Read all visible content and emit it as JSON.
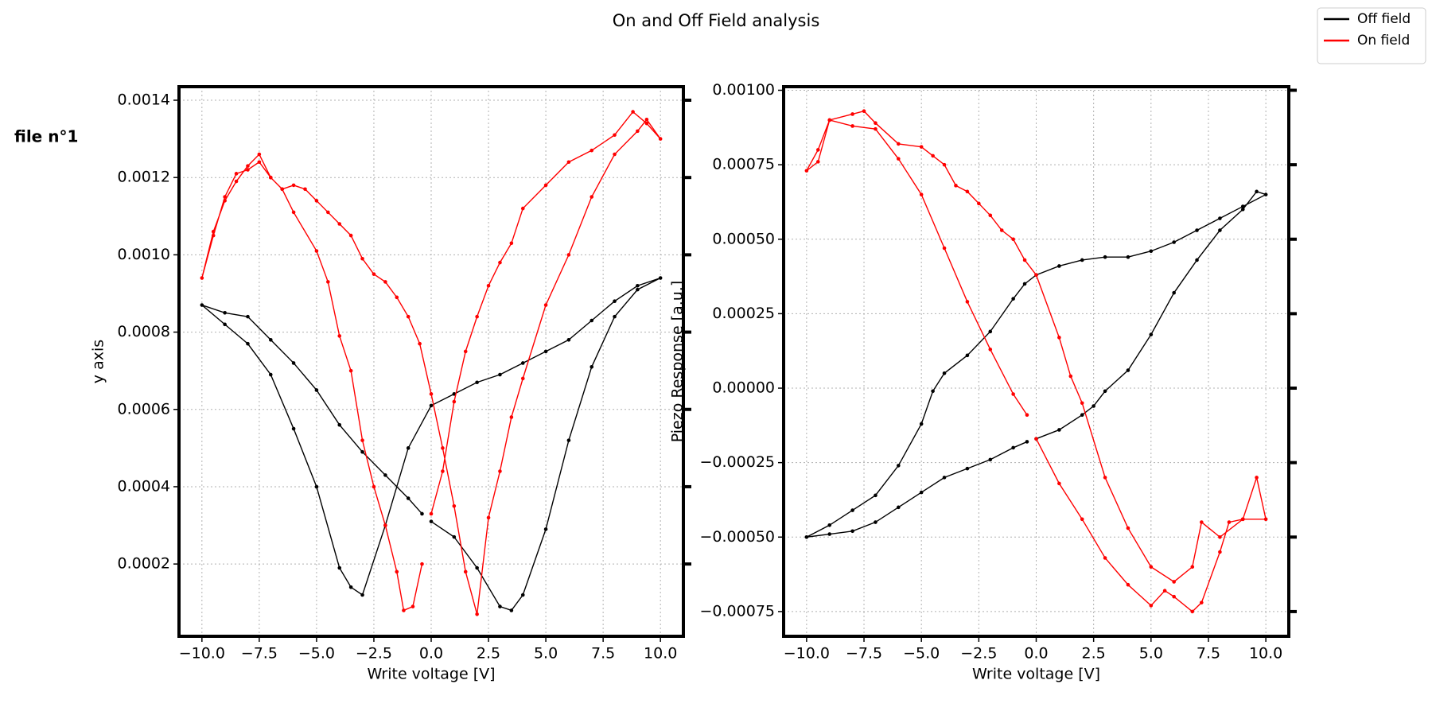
{
  "title": "On and Off Field analysis",
  "row_label": "file n°1",
  "legend": "upper right",
  "chart_data": [
    {
      "type": "line",
      "xlabel": "Write voltage [V]",
      "ylabel": "y axis",
      "grid": true,
      "markers": true,
      "xlim": [
        -11.0,
        11.0
      ],
      "ylim": [
        1.3e-05,
        0.001435
      ],
      "xticks": [
        {
          "value": -10,
          "label": "−10.0"
        },
        {
          "value": -7.5,
          "label": "−7.5"
        },
        {
          "value": -5,
          "label": "−5.0"
        },
        {
          "value": -2.5,
          "label": "−2.5"
        },
        {
          "value": 0,
          "label": "0.0"
        },
        {
          "value": 2.5,
          "label": "2.5"
        },
        {
          "value": 5,
          "label": "5.0"
        },
        {
          "value": 7.5,
          "label": "7.5"
        },
        {
          "value": 10,
          "label": "10.0"
        }
      ],
      "yticks": [
        0.0002,
        0.0004,
        0.0006,
        0.0008,
        {
          "value": 0.001,
          "label": "0.0010"
        },
        0.0012,
        0.0014
      ],
      "series": [
        {
          "name": "Off field",
          "color": "#000000",
          "x": [
            0,
            1,
            2,
            3,
            3.5,
            4,
            5,
            6,
            7,
            8,
            9,
            10,
            9,
            8,
            7,
            6,
            5,
            4,
            3,
            2,
            1,
            0,
            -1,
            -2,
            -3,
            -3.5,
            -4,
            -5,
            -6,
            -7,
            -8,
            -9,
            -10,
            -9,
            -8,
            -7,
            -6,
            -5,
            -4,
            -3,
            -2,
            -1,
            -0.4
          ],
          "values": [
            0.00031,
            0.00027,
            0.00019,
            9e-05,
            8e-05,
            0.00012,
            0.00029,
            0.00052,
            0.00071,
            0.00084,
            0.00091,
            0.00094,
            0.00092,
            0.00088,
            0.00083,
            0.00078,
            0.00075,
            0.00072,
            0.00069,
            0.00067,
            0.00064,
            0.00061,
            0.0005,
            0.0003,
            0.00012,
            0.00014,
            0.00019,
            0.0004,
            0.00055,
            0.00069,
            0.00077,
            0.00082,
            0.00087,
            0.00085,
            0.00084,
            0.00078,
            0.00072,
            0.00065,
            0.00056,
            0.00049,
            0.00043,
            0.00037,
            0.00033
          ]
        },
        {
          "name": "On field",
          "color": "#ff0000",
          "x": [
            0,
            0.5,
            1,
            1.5,
            2,
            2.5,
            3,
            3.5,
            4,
            5,
            6,
            7,
            8,
            8.8,
            9.4,
            10,
            9.4,
            9,
            8,
            7,
            6,
            5,
            4,
            3.5,
            3,
            2.5,
            2,
            1.5,
            1,
            0.5,
            0,
            -0.5,
            -1,
            -1.5,
            -2,
            -2.5,
            -3,
            -3.5,
            -4,
            -4.5,
            -5,
            -5.5,
            -6,
            -6.5,
            -7,
            -7.5,
            -8,
            -8.5,
            -9,
            -9.5,
            -10,
            -9.5,
            -9,
            -8.5,
            -8,
            -7.5,
            -7,
            -6.5,
            -6,
            -5,
            -4.5,
            -4,
            -3.5,
            -3,
            -2.5,
            -2,
            -1.5,
            -1.2,
            -0.8,
            -0.4
          ],
          "values": [
            0.00033,
            0.00044,
            0.00062,
            0.00075,
            0.00084,
            0.00092,
            0.00098,
            0.00103,
            0.00112,
            0.00118,
            0.00124,
            0.00127,
            0.00131,
            0.00137,
            0.00134,
            0.0013,
            0.00135,
            0.00132,
            0.00126,
            0.00115,
            0.001,
            0.00087,
            0.00068,
            0.00058,
            0.00044,
            0.00032,
            7e-05,
            0.00018,
            0.00035,
            0.0005,
            0.00064,
            0.00077,
            0.00084,
            0.00089,
            0.00093,
            0.00095,
            0.00099,
            0.00105,
            0.00108,
            0.00111,
            0.00114,
            0.00117,
            0.00118,
            0.00117,
            0.0012,
            0.00124,
            0.00122,
            0.00121,
            0.00115,
            0.00105,
            0.00094,
            0.00106,
            0.00114,
            0.00119,
            0.00123,
            0.00126,
            0.0012,
            0.00117,
            0.00111,
            0.00101,
            0.00093,
            0.00079,
            0.0007,
            0.00052,
            0.0004,
            0.0003,
            0.00018,
            8e-05,
            9e-05,
            0.0002
          ]
        }
      ]
    },
    {
      "type": "line",
      "xlabel": "Write voltage [V]",
      "ylabel": "Piezo Response [a.u.]",
      "grid": true,
      "markers": true,
      "xlim": [
        -11.0,
        11.0
      ],
      "ylim": [
        -0.000833,
        0.001012
      ],
      "xticks": [
        {
          "value": -10,
          "label": "−10.0"
        },
        {
          "value": -7.5,
          "label": "−7.5"
        },
        {
          "value": -5,
          "label": "−5.0"
        },
        {
          "value": -2.5,
          "label": "−2.5"
        },
        {
          "value": 0,
          "label": "0.0"
        },
        {
          "value": 2.5,
          "label": "2.5"
        },
        {
          "value": 5,
          "label": "5.0"
        },
        {
          "value": 7.5,
          "label": "7.5"
        },
        {
          "value": 10,
          "label": "10.0"
        }
      ],
      "yticks": [
        {
          "value": -0.00075,
          "label": "−0.00075"
        },
        {
          "value": -0.0005,
          "label": "−0.00050"
        },
        {
          "value": -0.00025,
          "label": "−0.00025"
        },
        {
          "value": 0,
          "label": "0.00000"
        },
        {
          "value": 0.00025,
          "label": "0.00025"
        },
        {
          "value": 0.0005,
          "label": "0.00050"
        },
        {
          "value": 0.00075,
          "label": "0.00075"
        },
        {
          "value": 0.001,
          "label": "0.00100"
        }
      ],
      "series": [
        {
          "name": "Off field",
          "color": "#000000",
          "x": [
            0,
            1,
            2,
            2.5,
            3,
            4,
            5,
            6,
            7,
            8,
            9,
            9.6,
            10,
            9,
            8,
            7,
            6,
            5,
            4,
            3,
            2,
            1,
            0,
            -0.5,
            -1,
            -2,
            -3,
            -4,
            -4.5,
            -5,
            -6,
            -7,
            -8,
            -9,
            -10,
            -9,
            -8,
            -7,
            -6,
            -5,
            -4,
            -3,
            -2,
            -1,
            -0.4
          ],
          "values": [
            -0.00017,
            -0.00014,
            -9e-05,
            -6e-05,
            -1e-05,
            6e-05,
            0.00018,
            0.00032,
            0.00043,
            0.00053,
            0.0006,
            0.00066,
            0.00065,
            0.00061,
            0.00057,
            0.00053,
            0.00049,
            0.00046,
            0.00044,
            0.00044,
            0.00043,
            0.00041,
            0.00038,
            0.00035,
            0.0003,
            0.00019,
            0.00011,
            5e-05,
            -1e-05,
            -0.00012,
            -0.00026,
            -0.00036,
            -0.00041,
            -0.00046,
            -0.0005,
            -0.00049,
            -0.00048,
            -0.00045,
            -0.0004,
            -0.00035,
            -0.0003,
            -0.00027,
            -0.00024,
            -0.0002,
            -0.00018
          ]
        },
        {
          "name": "On field",
          "color": "#ff0000",
          "x": [
            0,
            1,
            2,
            3,
            4,
            5,
            5.6,
            6,
            6.8,
            7.2,
            8,
            8.4,
            9,
            9.6,
            10,
            9,
            8,
            7.2,
            6.8,
            6,
            5,
            4,
            3,
            2,
            1.5,
            1,
            0,
            -0.5,
            -1,
            -1.5,
            -2,
            -2.5,
            -3,
            -3.5,
            -4,
            -4.5,
            -5,
            -6,
            -7,
            -7.5,
            -8,
            -9,
            -9.5,
            -10,
            -9.5,
            -9,
            -8,
            -7,
            -6,
            -5,
            -4,
            -3,
            -2,
            -1,
            -0.4
          ],
          "values": [
            -0.00017,
            -0.00032,
            -0.00044,
            -0.00057,
            -0.00066,
            -0.00073,
            -0.00068,
            -0.0007,
            -0.00075,
            -0.00072,
            -0.00055,
            -0.00045,
            -0.00044,
            -0.0003,
            -0.00044,
            -0.00044,
            -0.0005,
            -0.00045,
            -0.0006,
            -0.00065,
            -0.0006,
            -0.00047,
            -0.0003,
            -5e-05,
            4e-05,
            0.00017,
            0.00038,
            0.00043,
            0.0005,
            0.00053,
            0.00058,
            0.00062,
            0.00066,
            0.00068,
            0.00075,
            0.00078,
            0.00081,
            0.00082,
            0.00089,
            0.00093,
            0.00092,
            0.0009,
            0.00076,
            0.00073,
            0.0008,
            0.0009,
            0.00088,
            0.00087,
            0.00077,
            0.00065,
            0.00047,
            0.00029,
            0.00013,
            -2e-05,
            -9e-05
          ]
        }
      ]
    }
  ]
}
